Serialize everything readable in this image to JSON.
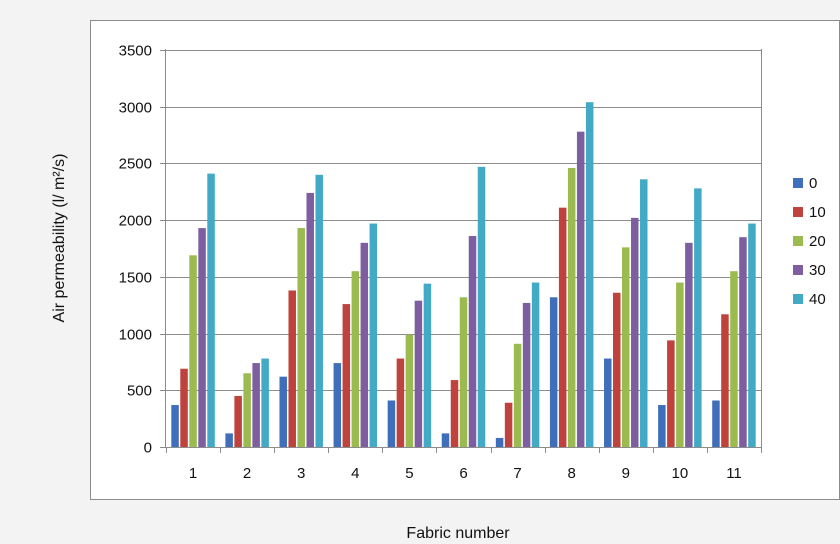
{
  "chart_data": {
    "type": "bar",
    "title": "",
    "xlabel": "Fabric number",
    "ylabel": "Air permeability (l/ m²/s)",
    "ylim": [
      0,
      3500
    ],
    "yticks": [
      0,
      500,
      1000,
      1500,
      2000,
      2500,
      3000,
      3500
    ],
    "grid": true,
    "legend_position": "right",
    "categories": [
      "1",
      "2",
      "3",
      "4",
      "5",
      "6",
      "7",
      "8",
      "9",
      "10",
      "11"
    ],
    "series": [
      {
        "name": "0",
        "color": "#3f6fba",
        "values": [
          370,
          120,
          620,
          740,
          410,
          120,
          80,
          1320,
          780,
          370,
          410
        ]
      },
      {
        "name": "10",
        "color": "#c0423c",
        "values": [
          690,
          450,
          1380,
          1260,
          780,
          590,
          390,
          2110,
          1360,
          940,
          1170
        ]
      },
      {
        "name": "20",
        "color": "#9bbb50",
        "values": [
          1690,
          650,
          1930,
          1550,
          990,
          1320,
          910,
          2460,
          1760,
          1450,
          1550
        ]
      },
      {
        "name": "30",
        "color": "#7d5fa1",
        "values": [
          1930,
          740,
          2240,
          1800,
          1290,
          1860,
          1270,
          2780,
          2020,
          1800,
          1850
        ]
      },
      {
        "name": "40",
        "color": "#43aac6",
        "values": [
          2410,
          780,
          2400,
          1970,
          1440,
          2470,
          1450,
          3040,
          2360,
          2280,
          1970
        ]
      }
    ]
  }
}
